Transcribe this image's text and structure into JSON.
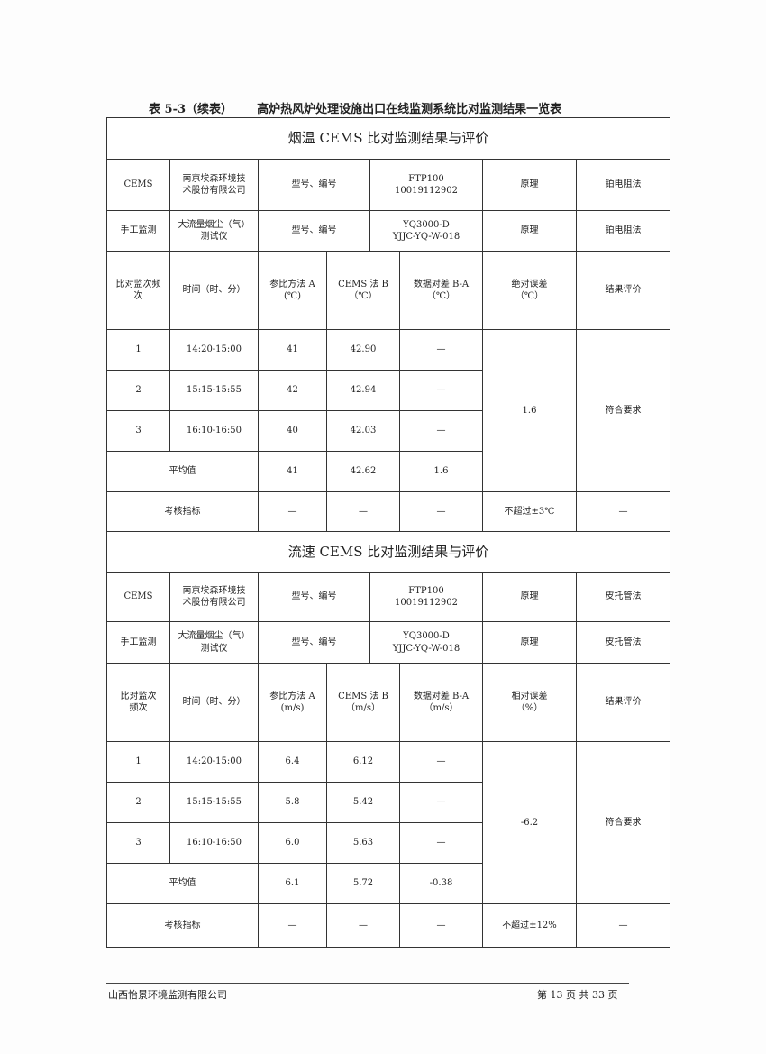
{
  "caption": "表 5-3（续表）      高炉热风炉处理设施出口在线监测系统比对监测结果一览表",
  "sections": [
    {
      "title": "烟温 CEMS 比对监测结果与评价",
      "cems_row": [
        "CEMS",
        "南京埃森环境技\n术股份有限公司",
        "型号、编号",
        "FTP100\n10019112902",
        "原理",
        "铂电阻法"
      ],
      "manual_row": [
        "手工监测",
        "大流量烟尘（气）\n测试仪",
        "型号、编号",
        "YQ3000-D\nYJJC-YQ-W-018",
        "原理",
        "铂电阻法"
      ],
      "headers": [
        "比对监次频\n次",
        "时间（时、分）",
        "参比方法 A\n(℃)",
        "CEMS 法 B\n（℃）",
        "数据对差 B-A\n（℃）",
        "绝对误差\n（℃）",
        "结果评价"
      ],
      "rows": [
        [
          "1",
          "14:20-15:00",
          "41",
          "42.90",
          "—"
        ],
        [
          "2",
          "15:15-15:55",
          "42",
          "42.94",
          "—"
        ],
        [
          "3",
          "16:10-16:50",
          "40",
          "42.03",
          "—"
        ]
      ],
      "error": "1.6",
      "result": "符合要求",
      "average": [
        "平均值",
        "41",
        "42.62",
        "1.6"
      ],
      "index": [
        "考核指标",
        "—",
        "—",
        "—",
        "不超过±3℃",
        "—"
      ]
    },
    {
      "title": "流速 CEMS 比对监测结果与评价",
      "cems_row": [
        "CEMS",
        "南京埃森环境技\n术股份有限公司",
        "型号、编号",
        "FTP100\n10019112902",
        "原理",
        "皮托管法"
      ],
      "manual_row": [
        "手工监测",
        "大流量烟尘（气）\n测试仪",
        "型号、编号",
        "YQ3000-D\nYJJC-YQ-W-018",
        "原理",
        "皮托管法"
      ],
      "headers": [
        "比对监次\n频次",
        "时间（时、分）",
        "参比方法 A\n(m/s)",
        "CEMS 法 B\n（m/s）",
        "数据对差 B-A\n（m/s）",
        "相对误差\n（%）",
        "结果评价"
      ],
      "rows": [
        [
          "1",
          "14:20-15:00",
          "6.4",
          "6.12",
          "—"
        ],
        [
          "2",
          "15:15-15:55",
          "5.8",
          "5.42",
          "—"
        ],
        [
          "3",
          "16:10-16:50",
          "6.0",
          "5.63",
          "—"
        ]
      ],
      "error": "-6.2",
      "result": "符合要求",
      "average": [
        "平均值",
        "6.1",
        "5.72",
        "-0.38"
      ],
      "index": [
        "考核指标",
        "—",
        "—",
        "—",
        "不超过±12%",
        "—"
      ]
    }
  ],
  "footer": {
    "company": "山西怡景环境监测有限公司",
    "page": "第 13 页 共 33 页"
  }
}
